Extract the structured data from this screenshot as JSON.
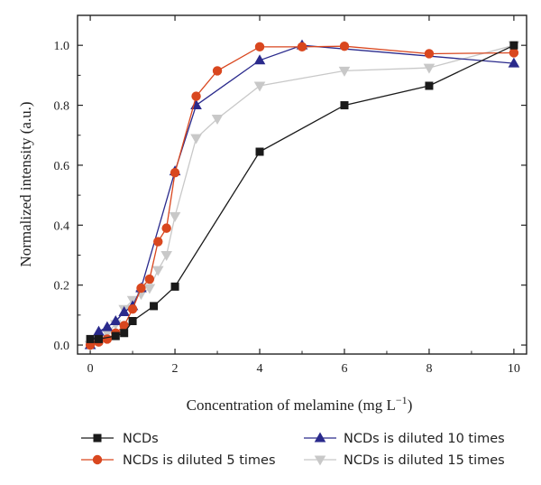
{
  "chart_data": {
    "type": "line",
    "xlabel": "Concentration of melamine (mg L",
    "xlabel_exponent": "−1",
    "xlabel_suffix": ")",
    "ylabel": "Normalized intensity (a.u.)",
    "xlim": [
      -0.3,
      10.3
    ],
    "ylim": [
      -0.03,
      1.1
    ],
    "x_ticks": [
      0,
      2,
      4,
      6,
      8,
      10
    ],
    "x_tick_labels": [
      "0",
      "2",
      "4",
      "6",
      "8",
      "10"
    ],
    "y_ticks": [
      0.0,
      0.2,
      0.4,
      0.6,
      0.8,
      1.0
    ],
    "y_tick_labels": [
      "0.0",
      "0.2",
      "0.4",
      "0.6",
      "0.8",
      "1.0"
    ],
    "grid": false,
    "legend_position": "bottom",
    "series": [
      {
        "name": "NCDs",
        "marker": "square",
        "color": "#1a1a1a",
        "x": [
          0,
          0.2,
          0.6,
          0.8,
          1.0,
          1.5,
          2.0,
          4.0,
          6.0,
          8.0,
          10.0
        ],
        "y": [
          0.02,
          0.02,
          0.03,
          0.04,
          0.08,
          0.13,
          0.195,
          0.645,
          0.8,
          0.865,
          1.0
        ]
      },
      {
        "name": "NCDs is diluted 5 times",
        "marker": "circle",
        "color": "#d9471f",
        "x": [
          0,
          0.2,
          0.4,
          0.6,
          0.8,
          1.0,
          1.2,
          1.4,
          1.6,
          1.8,
          2.0,
          2.5,
          3.0,
          4.0,
          5.0,
          6.0,
          8.0,
          10.0
        ],
        "y": [
          0.0,
          0.01,
          0.02,
          0.04,
          0.065,
          0.12,
          0.19,
          0.22,
          0.345,
          0.39,
          0.575,
          0.83,
          0.915,
          0.995,
          0.995,
          0.997,
          0.972,
          0.975
        ]
      },
      {
        "name": "NCDs is diluted 10 times",
        "marker": "triangle-up",
        "color": "#2a2a8c",
        "x": [
          0,
          0.2,
          0.4,
          0.6,
          0.8,
          1.0,
          1.2,
          2.0,
          2.5,
          4.0,
          5.0,
          10.0
        ],
        "y": [
          0.0,
          0.045,
          0.06,
          0.08,
          0.11,
          0.13,
          0.19,
          0.58,
          0.8,
          0.95,
          1.0,
          0.94
        ]
      },
      {
        "name": "NCDs is diluted 15 times",
        "marker": "triangle-down",
        "color": "#c8c8c8",
        "x": [
          0,
          0.2,
          0.4,
          0.6,
          0.8,
          1.0,
          1.2,
          1.4,
          1.6,
          1.8,
          2.0,
          2.5,
          3.0,
          4.0,
          6.0,
          8.0,
          10.0
        ],
        "y": [
          0.0,
          0.02,
          0.04,
          0.07,
          0.12,
          0.15,
          0.17,
          0.19,
          0.25,
          0.3,
          0.43,
          0.69,
          0.755,
          0.865,
          0.915,
          0.925,
          1.0
        ]
      }
    ]
  }
}
